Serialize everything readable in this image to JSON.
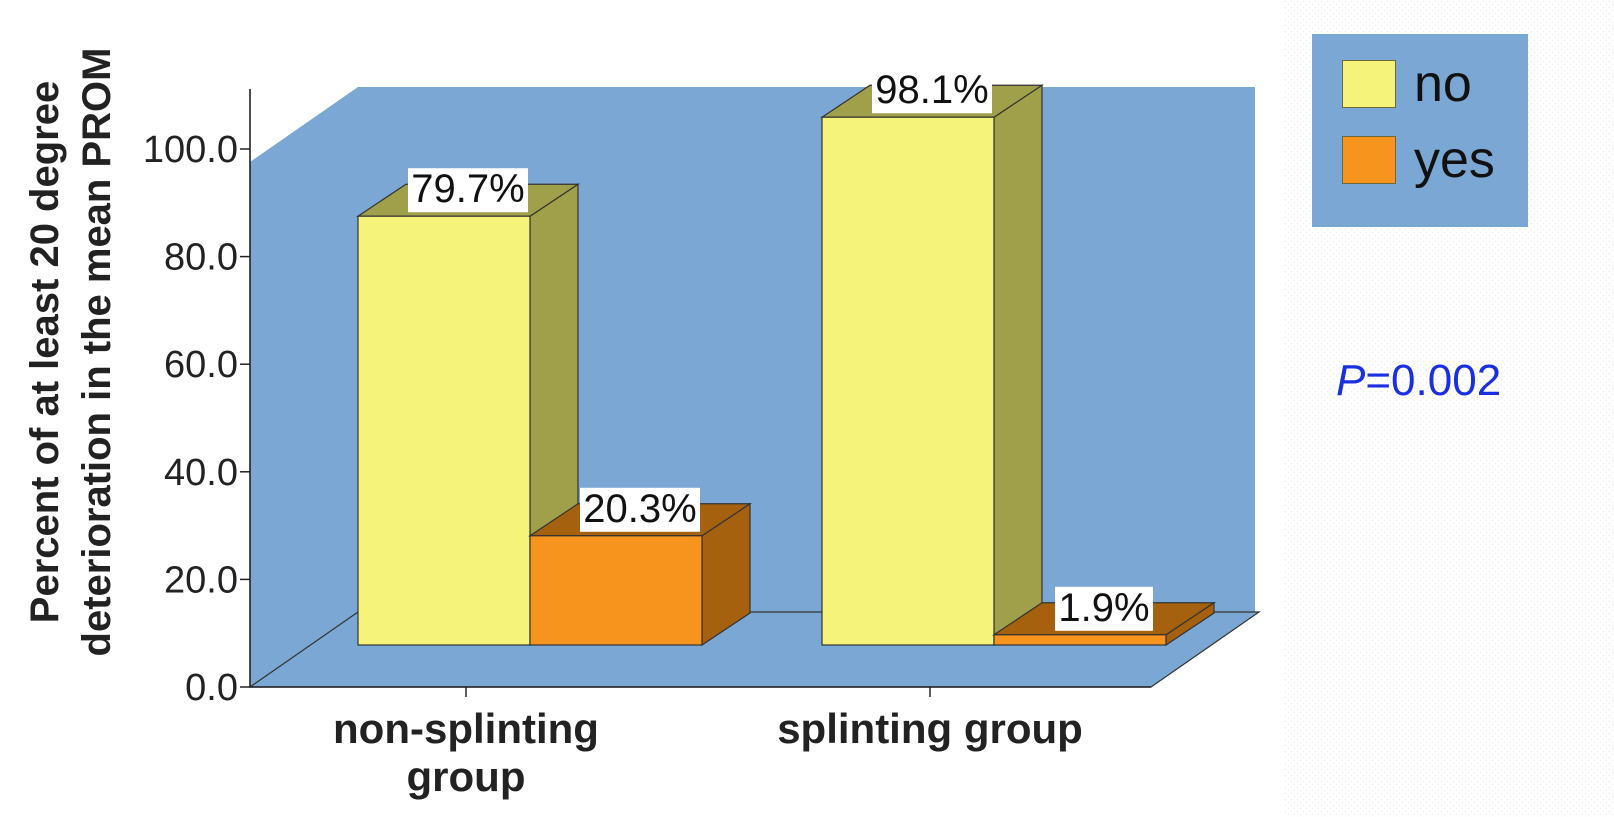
{
  "chart_data": {
    "type": "bar",
    "categories": [
      "non-splinting group",
      "splinting group"
    ],
    "category_label_lines": [
      [
        "non-splinting",
        "group"
      ],
      [
        "splinting group"
      ]
    ],
    "series": [
      {
        "name": "no",
        "values": [
          79.7,
          98.1
        ],
        "labels": [
          "79.7%",
          "98.1%"
        ],
        "color": "#f6f37a",
        "side_color": "#a1a04a"
      },
      {
        "name": "yes",
        "values": [
          20.3,
          1.9
        ],
        "labels": [
          "20.3%",
          "1.9%"
        ],
        "color": "#f7941d",
        "side_color": "#a6610f"
      }
    ],
    "ylabel_lines": [
      "Percent of at least 20 degree",
      "deterioration in the mean PROM"
    ],
    "yticks": [
      "0.0",
      "20.0",
      "40.0",
      "60.0",
      "80.0",
      "100.0"
    ],
    "ylim": [
      0,
      100
    ],
    "wall_color": "#7ba7d4",
    "legend_position": "top-right"
  },
  "annotation": {
    "p_label": "P",
    "p_value": "=0.002"
  }
}
